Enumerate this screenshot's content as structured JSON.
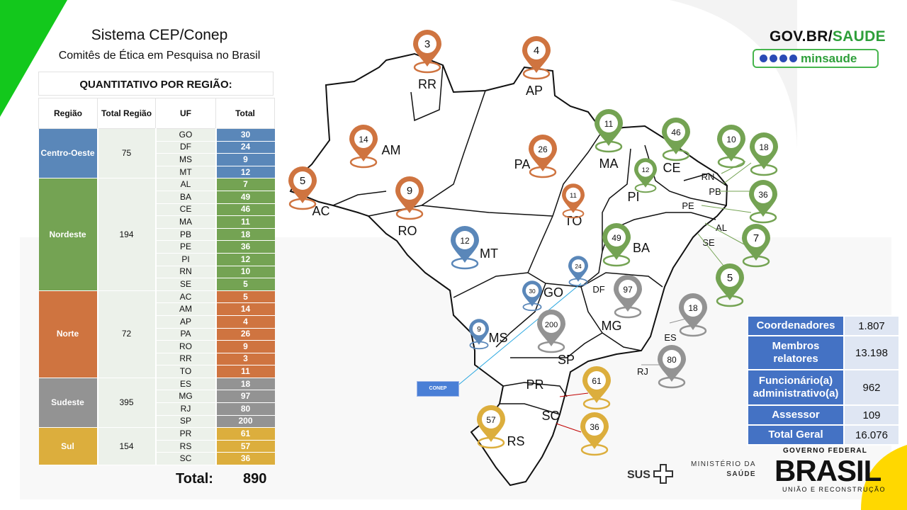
{
  "header": {
    "title": "Sistema CEP/Conep",
    "subtitle": "Comitês de Ética em Pesquisa no Brasil",
    "table_title": "QUANTITATIVO POR REGIÃO:"
  },
  "region_table": {
    "headers": [
      "Região",
      "Total Região",
      "UF",
      "Total"
    ],
    "regions": [
      {
        "name": "Centro-Oeste",
        "total": "75",
        "color": "#5a87b9",
        "ufs": [
          [
            "GO",
            "30"
          ],
          [
            "DF",
            "24"
          ],
          [
            "MS",
            "9"
          ],
          [
            "MT",
            "12"
          ]
        ]
      },
      {
        "name": "Nordeste",
        "total": "194",
        "color": "#74a353",
        "ufs": [
          [
            "AL",
            "7"
          ],
          [
            "BA",
            "49"
          ],
          [
            "CE",
            "46"
          ],
          [
            "MA",
            "11"
          ],
          [
            "PB",
            "18"
          ],
          [
            "PE",
            "36"
          ],
          [
            "PI",
            "12"
          ],
          [
            "RN",
            "10"
          ],
          [
            "SE",
            "5"
          ]
        ]
      },
      {
        "name": "Norte",
        "total": "72",
        "color": "#cf7440",
        "ufs": [
          [
            "AC",
            "5"
          ],
          [
            "AM",
            "14"
          ],
          [
            "AP",
            "4"
          ],
          [
            "PA",
            "26"
          ],
          [
            "RO",
            "9"
          ],
          [
            "RR",
            "3"
          ],
          [
            "TO",
            "11"
          ]
        ]
      },
      {
        "name": "Sudeste",
        "total": "395",
        "color": "#939393",
        "ufs": [
          [
            "ES",
            "18"
          ],
          [
            "MG",
            "97"
          ],
          [
            "RJ",
            "80"
          ],
          [
            "SP",
            "200"
          ]
        ]
      },
      {
        "name": "Sul",
        "total": "154",
        "color": "#dcae3d",
        "ufs": [
          [
            "PR",
            "61"
          ],
          [
            "RS",
            "57"
          ],
          [
            "SC",
            "36"
          ]
        ]
      }
    ],
    "total_label": "Total:",
    "total_value": "890"
  },
  "staff_table": [
    {
      "label": "Coordenadores",
      "value": "1.807"
    },
    {
      "label": "Membros relatores",
      "value": "13.198"
    },
    {
      "label": "Funcionário(a) administrativo(a)",
      "value": "962"
    },
    {
      "label": "Assessor",
      "value": "109"
    },
    {
      "label": "Total Geral",
      "value": "16.076"
    }
  ],
  "branding": {
    "gov_prefix": "GOV.BR/",
    "gov_suffix": "SAUDE",
    "social_handle": "minsaude",
    "social_icons": [
      "facebook-icon",
      "instagram-icon",
      "twitter-icon",
      "youtube-icon"
    ],
    "sus": "SUS",
    "ministerio_line1": "MINISTÉRIO DA",
    "ministerio_line2": "SAÚDE",
    "governo_federal": "GOVERNO FEDERAL",
    "brasil": "BRASIL",
    "uniao": "UNIÃO E RECONSTRUÇÃO"
  },
  "map": {
    "conep_label": "CONEP",
    "region_colors": {
      "Norte": "#cf7440",
      "Nordeste": "#74a353",
      "Centro-Oeste": "#5a87b9",
      "Sudeste": "#939393",
      "Sul": "#dcae3d"
    },
    "state_labels": [
      "RR",
      "AP",
      "AM",
      "PA",
      "AC",
      "RO",
      "MT",
      "TO",
      "MA",
      "CE",
      "PI",
      "RN",
      "PB",
      "PE",
      "AL",
      "SE",
      "BA",
      "GO",
      "DF",
      "MS",
      "MG",
      "ES",
      "SP",
      "RJ",
      "PR",
      "SC",
      "RS"
    ],
    "pins": [
      {
        "uf": "RR",
        "value": "3",
        "region": "Norte"
      },
      {
        "uf": "AP",
        "value": "4",
        "region": "Norte"
      },
      {
        "uf": "AM",
        "value": "14",
        "region": "Norte"
      },
      {
        "uf": "PA",
        "value": "26",
        "region": "Norte"
      },
      {
        "uf": "AC",
        "value": "5",
        "region": "Norte"
      },
      {
        "uf": "RO",
        "value": "9",
        "region": "Norte"
      },
      {
        "uf": "TO",
        "value": "11",
        "region": "Norte"
      },
      {
        "uf": "MT",
        "value": "12",
        "region": "Centro-Oeste"
      },
      {
        "uf": "DF",
        "value": "24",
        "region": "Centro-Oeste"
      },
      {
        "uf": "GO",
        "value": "30",
        "region": "Centro-Oeste"
      },
      {
        "uf": "MS",
        "value": "9",
        "region": "Centro-Oeste"
      },
      {
        "uf": "MA",
        "value": "11",
        "region": "Nordeste"
      },
      {
        "uf": "CE",
        "value": "46",
        "region": "Nordeste"
      },
      {
        "uf": "PI",
        "value": "12",
        "region": "Nordeste"
      },
      {
        "uf": "RN",
        "value": "10",
        "region": "Nordeste"
      },
      {
        "uf": "PB",
        "value": "18",
        "region": "Nordeste"
      },
      {
        "uf": "PE",
        "value": "36",
        "region": "Nordeste"
      },
      {
        "uf": "AL",
        "value": "7",
        "region": "Nordeste"
      },
      {
        "uf": "SE",
        "value": "5",
        "region": "Nordeste"
      },
      {
        "uf": "BA",
        "value": "49",
        "region": "Nordeste"
      },
      {
        "uf": "MG",
        "value": "97",
        "region": "Sudeste"
      },
      {
        "uf": "ES",
        "value": "18",
        "region": "Sudeste"
      },
      {
        "uf": "SP",
        "value": "200",
        "region": "Sudeste"
      },
      {
        "uf": "RJ",
        "value": "80",
        "region": "Sudeste"
      },
      {
        "uf": "PR",
        "value": "61",
        "region": "Sul"
      },
      {
        "uf": "SC",
        "value": "36",
        "region": "Sul"
      },
      {
        "uf": "RS",
        "value": "57",
        "region": "Sul"
      }
    ]
  }
}
